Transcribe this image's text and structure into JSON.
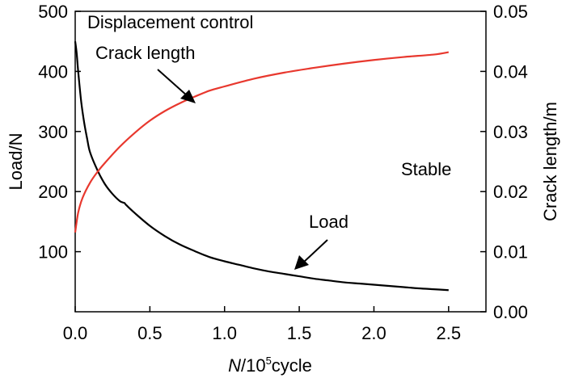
{
  "chart_data": {
    "type": "line",
    "title": "",
    "xlabel": {
      "italic": "N",
      "prefix": "/10",
      "sup": "5",
      "suffix": "cycle"
    },
    "ylabel_left": "Load/N",
    "ylabel_right": "Crack length/m",
    "xlim": [
      0.0,
      2.75
    ],
    "ylim_left": [
      0,
      500
    ],
    "ylim_right": [
      0.0,
      0.05
    ],
    "x_ticks": [
      "0.0",
      "0.5",
      "1.0",
      "1.5",
      "2.0",
      "2.5"
    ],
    "x_tick_values": [
      0.0,
      0.5,
      1.0,
      1.5,
      2.0,
      2.5
    ],
    "y_left_ticks": [
      "100",
      "200",
      "300",
      "400",
      "500"
    ],
    "y_left_tick_values": [
      100,
      200,
      300,
      400,
      500
    ],
    "y_right_ticks": [
      "0.00",
      "0.01",
      "0.02",
      "0.03",
      "0.04",
      "0.05"
    ],
    "y_right_tick_values": [
      0.0,
      0.01,
      0.02,
      0.03,
      0.04,
      0.05
    ],
    "grid": false,
    "series": [
      {
        "name": "Load",
        "axis": "left",
        "color": "#000000",
        "x": [
          0.0,
          0.01,
          0.02,
          0.04,
          0.06,
          0.08,
          0.1,
          0.15,
          0.2,
          0.25,
          0.3,
          0.33,
          0.34,
          0.4,
          0.5,
          0.6,
          0.7,
          0.8,
          0.9,
          1.0,
          1.1,
          1.2,
          1.3,
          1.4,
          1.5,
          1.6,
          1.7,
          1.8,
          1.9,
          2.0,
          2.1,
          2.2,
          2.3,
          2.4,
          2.5
        ],
        "values": [
          450,
          430,
          400,
          350,
          315,
          288,
          265,
          235,
          212,
          196,
          184,
          181,
          178,
          164,
          143,
          126,
          112,
          101,
          91,
          84,
          78,
          72,
          67,
          63,
          59,
          55,
          52,
          49,
          47,
          45,
          43,
          41,
          39,
          37.5,
          36
        ]
      },
      {
        "name": "Crack length",
        "axis": "right",
        "color": "#e8382e",
        "x": [
          0.0,
          0.02,
          0.05,
          0.1,
          0.15,
          0.2,
          0.3,
          0.4,
          0.5,
          0.6,
          0.7,
          0.8,
          0.9,
          1.0,
          1.2,
          1.4,
          1.6,
          1.8,
          2.0,
          2.2,
          2.4,
          2.5
        ],
        "values": [
          0.0132,
          0.0165,
          0.019,
          0.0215,
          0.0233,
          0.0248,
          0.0275,
          0.0298,
          0.0318,
          0.0334,
          0.0347,
          0.0358,
          0.0368,
          0.0375,
          0.0388,
          0.0398,
          0.0406,
          0.0413,
          0.0419,
          0.0424,
          0.0428,
          0.0432
        ]
      }
    ],
    "annotations": {
      "mode": "Displacement control",
      "crack_label": "Crack length",
      "load_label": "Load",
      "stable": "Stable"
    }
  }
}
